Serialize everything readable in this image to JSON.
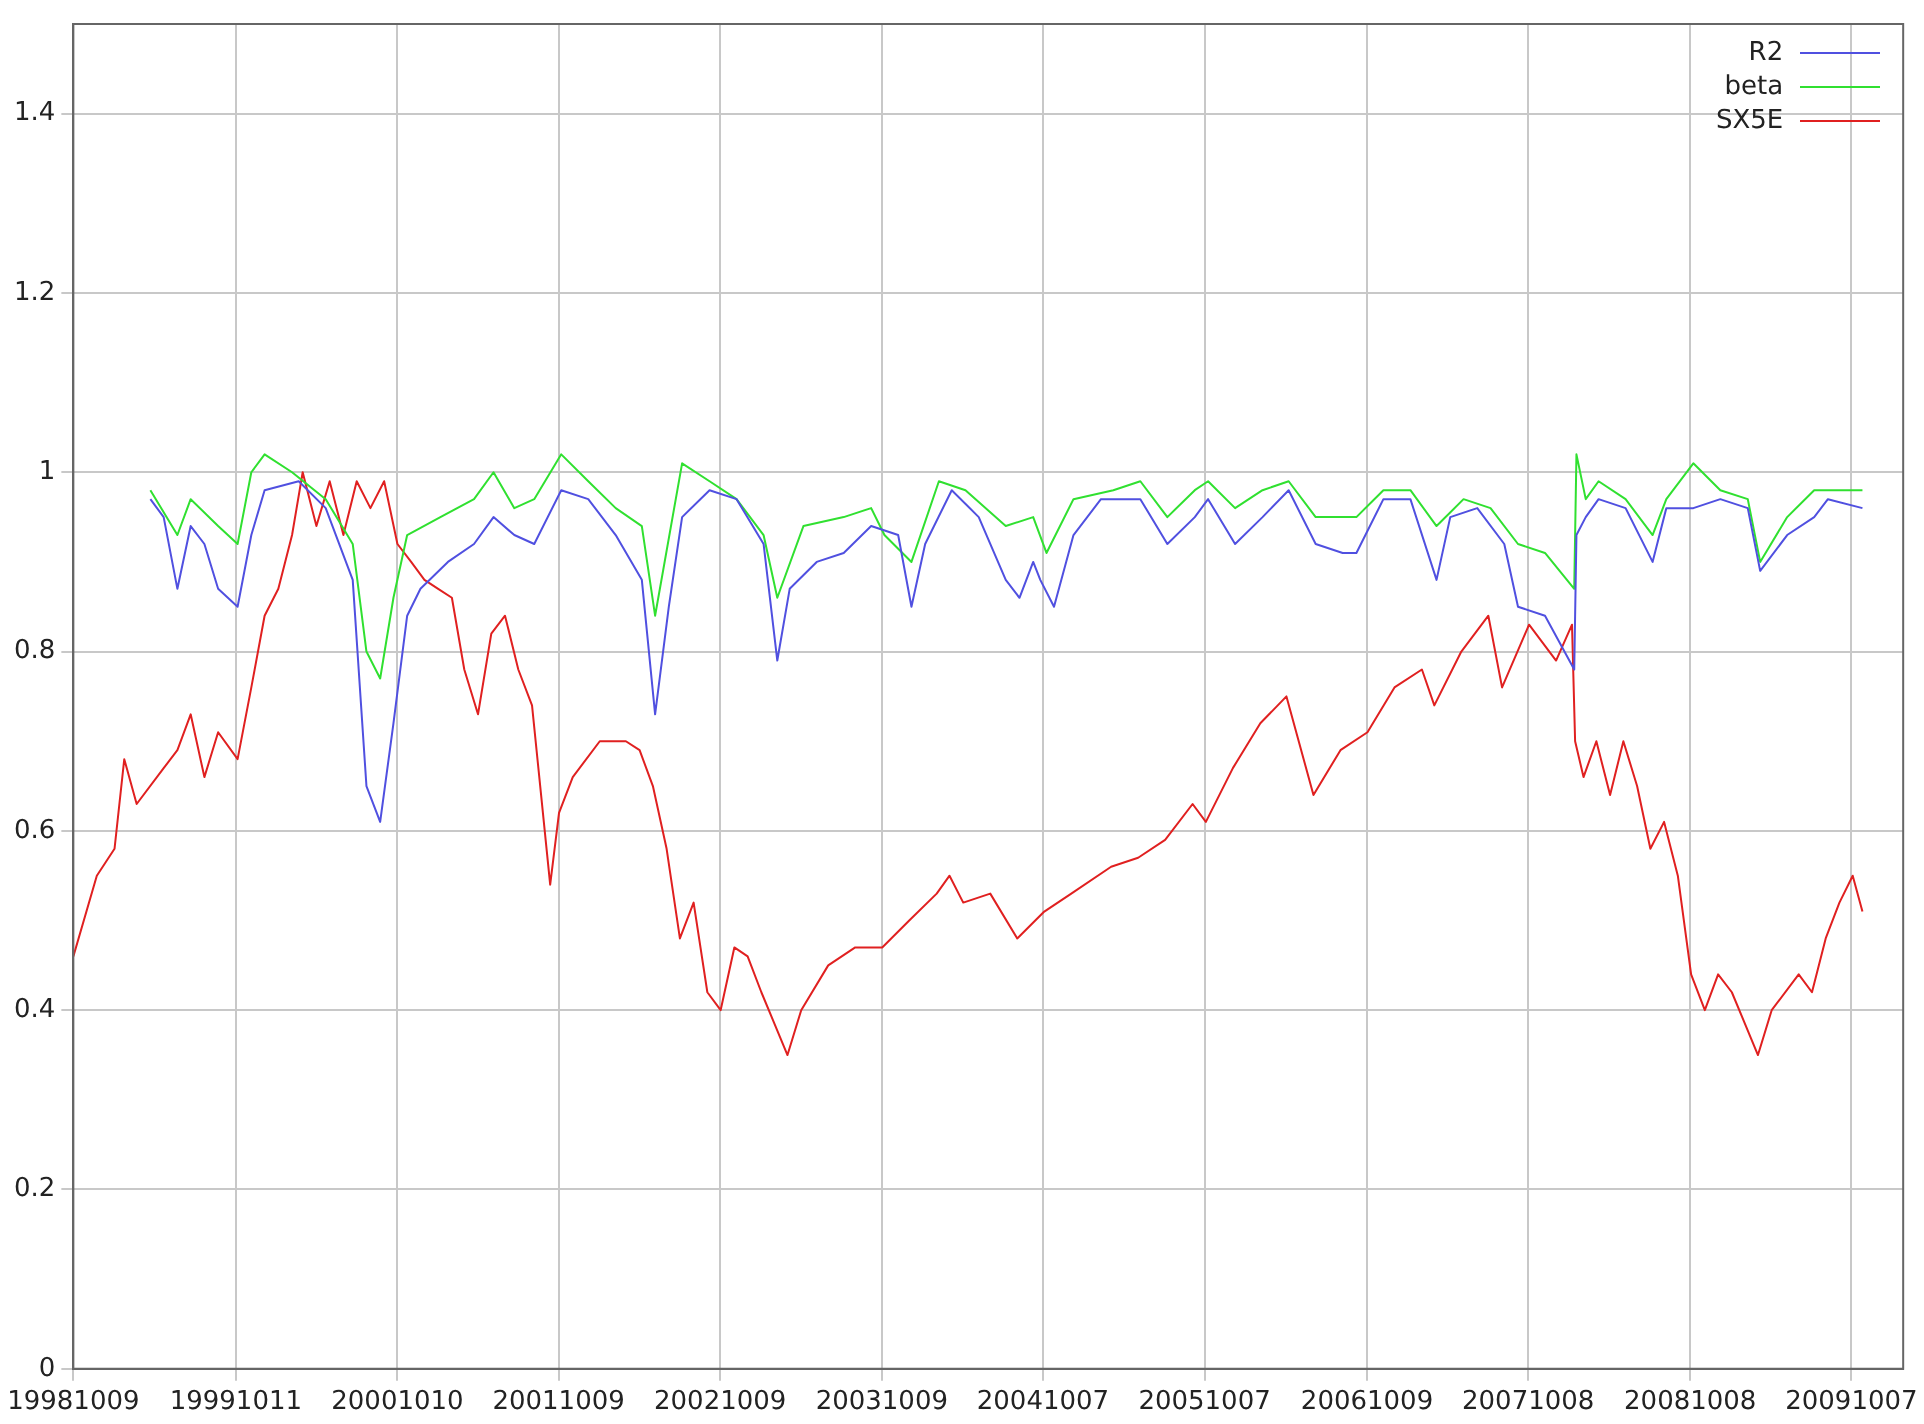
{
  "chart_data": {
    "type": "line",
    "legend": "top right",
    "grid": true,
    "marker": "none",
    "line_style": "solid",
    "xlim": [
      "1998-10-09",
      "2010-02-01"
    ],
    "ylim": [
      0,
      1.5
    ],
    "xticks": [
      {
        "value": "1998-10-09",
        "label": "19981009"
      },
      {
        "value": "1999-10-11",
        "label": "19991011"
      },
      {
        "value": "2000-10-10",
        "label": "20001010"
      },
      {
        "value": "2001-10-09",
        "label": "20011009"
      },
      {
        "value": "2002-10-09",
        "label": "20021009"
      },
      {
        "value": "2003-10-09",
        "label": "20031009"
      },
      {
        "value": "2004-10-07",
        "label": "20041007"
      },
      {
        "value": "2005-10-07",
        "label": "20051007"
      },
      {
        "value": "2006-10-09",
        "label": "20061009"
      },
      {
        "value": "2007-10-08",
        "label": "20071008"
      },
      {
        "value": "2008-10-08",
        "label": "20081008"
      },
      {
        "value": "2009-10-07",
        "label": "20091007"
      }
    ],
    "yticks": [
      0,
      0.2,
      0.4,
      0.6,
      0.8,
      1,
      1.2,
      1.4
    ],
    "series": [
      {
        "name": "R2",
        "color": "#5050e0",
        "x": [
          "1999-04-01",
          "1999-05-01",
          "1999-06-01",
          "1999-07-01",
          "1999-08-01",
          "1999-09-01",
          "1999-10-15",
          "1999-11-15",
          "1999-12-15",
          "2000-03-01",
          "2000-05-01",
          "2000-07-01",
          "2000-08-01",
          "2000-09-01",
          "2000-10-01",
          "2000-11-01",
          "2000-12-01",
          "2001-02-01",
          "2001-04-01",
          "2001-05-15",
          "2001-07-01",
          "2001-08-15",
          "2001-10-15",
          "2001-12-15",
          "2002-02-15",
          "2002-04-15",
          "2002-05-15",
          "2002-06-15",
          "2002-07-15",
          "2002-09-15",
          "2002-11-15",
          "2003-01-15",
          "2003-02-15",
          "2003-03-15",
          "2003-05-15",
          "2003-07-15",
          "2003-09-15",
          "2003-11-15",
          "2003-12-15",
          "2004-01-15",
          "2004-03-15",
          "2004-05-15",
          "2004-07-15",
          "2004-08-15",
          "2004-09-15",
          "2004-10-01",
          "2004-11-01",
          "2004-12-15",
          "2005-02-15",
          "2005-05-15",
          "2005-07-15",
          "2005-09-15",
          "2005-10-15",
          "2005-12-15",
          "2006-02-15",
          "2006-04-15",
          "2006-06-15",
          "2006-08-15",
          "2006-09-15",
          "2006-11-15",
          "2007-01-15",
          "2007-03-15",
          "2007-04-15",
          "2007-06-15",
          "2007-08-15",
          "2007-09-15",
          "2007-11-15",
          "2008-01-20",
          "2008-01-25",
          "2008-02-15",
          "2008-03-15",
          "2008-05-15",
          "2008-07-15",
          "2008-08-15",
          "2008-10-15",
          "2008-12-15",
          "2009-02-15",
          "2009-03-15",
          "2009-05-15",
          "2009-07-15",
          "2009-08-15",
          "2009-11-01"
        ],
        "values": [
          0.97,
          0.95,
          0.87,
          0.94,
          0.92,
          0.87,
          0.85,
          0.93,
          0.98,
          0.99,
          0.96,
          0.88,
          0.65,
          0.61,
          0.72,
          0.84,
          0.87,
          0.9,
          0.92,
          0.95,
          0.93,
          0.92,
          0.98,
          0.97,
          0.93,
          0.88,
          0.73,
          0.85,
          0.95,
          0.98,
          0.97,
          0.92,
          0.79,
          0.87,
          0.9,
          0.91,
          0.94,
          0.93,
          0.85,
          0.92,
          0.98,
          0.95,
          0.88,
          0.86,
          0.9,
          0.88,
          0.85,
          0.93,
          0.97,
          0.97,
          0.92,
          0.95,
          0.97,
          0.92,
          0.95,
          0.98,
          0.92,
          0.91,
          0.91,
          0.97,
          0.97,
          0.88,
          0.95,
          0.96,
          0.92,
          0.85,
          0.84,
          0.78,
          0.93,
          0.95,
          0.97,
          0.96,
          0.9,
          0.96,
          0.96,
          0.97,
          0.96,
          0.89,
          0.93,
          0.95,
          0.97,
          0.96
        ]
      },
      {
        "name": "beta",
        "color": "#30e030",
        "x": [
          "1999-04-01",
          "1999-06-01",
          "1999-07-01",
          "1999-09-01",
          "1999-10-15",
          "1999-11-15",
          "1999-12-15",
          "2000-02-15",
          "2000-05-01",
          "2000-07-01",
          "2000-08-01",
          "2000-09-01",
          "2000-10-01",
          "2000-11-01",
          "2001-01-15",
          "2001-04-01",
          "2001-05-15",
          "2001-07-01",
          "2001-08-15",
          "2001-10-15",
          "2001-12-15",
          "2002-02-15",
          "2002-04-15",
          "2002-05-15",
          "2002-07-15",
          "2002-09-15",
          "2002-11-15",
          "2003-01-15",
          "2003-02-15",
          "2003-04-15",
          "2003-07-15",
          "2003-09-15",
          "2003-10-15",
          "2003-12-15",
          "2004-02-15",
          "2004-04-15",
          "2004-07-15",
          "2004-09-15",
          "2004-10-15",
          "2004-12-15",
          "2005-03-15",
          "2005-05-15",
          "2005-07-15",
          "2005-09-15",
          "2005-10-15",
          "2005-12-15",
          "2006-02-15",
          "2006-04-15",
          "2006-06-15",
          "2006-09-15",
          "2006-11-15",
          "2007-01-15",
          "2007-03-15",
          "2007-05-15",
          "2007-07-15",
          "2007-09-15",
          "2007-11-15",
          "2008-01-20",
          "2008-01-25",
          "2008-02-15",
          "2008-03-15",
          "2008-05-15",
          "2008-07-15",
          "2008-08-15",
          "2008-10-15",
          "2008-12-15",
          "2009-02-15",
          "2009-03-15",
          "2009-05-15",
          "2009-07-15",
          "2009-09-15",
          "2009-11-01"
        ],
        "values": [
          0.98,
          0.93,
          0.97,
          0.94,
          0.92,
          1.0,
          1.02,
          1.0,
          0.97,
          0.92,
          0.8,
          0.77,
          0.86,
          0.93,
          0.95,
          0.97,
          1.0,
          0.96,
          0.97,
          1.02,
          0.99,
          0.96,
          0.94,
          0.84,
          1.01,
          0.99,
          0.97,
          0.93,
          0.86,
          0.94,
          0.95,
          0.96,
          0.93,
          0.9,
          0.99,
          0.98,
          0.94,
          0.95,
          0.91,
          0.97,
          0.98,
          0.99,
          0.95,
          0.98,
          0.99,
          0.96,
          0.98,
          0.99,
          0.95,
          0.95,
          0.98,
          0.98,
          0.94,
          0.97,
          0.96,
          0.92,
          0.91,
          0.87,
          1.02,
          0.97,
          0.99,
          0.97,
          0.93,
          0.97,
          1.01,
          0.98,
          0.97,
          0.9,
          0.95,
          0.98,
          0.98,
          0.98
        ]
      },
      {
        "name": "SX5E",
        "color": "#e02020",
        "x": [
          "1998-10-09",
          "1998-12-01",
          "1999-01-10",
          "1999-02-01",
          "1999-03-01",
          "1999-05-01",
          "1999-06-01",
          "1999-07-01",
          "1999-08-01",
          "1999-09-01",
          "1999-10-15",
          "1999-11-15",
          "1999-12-15",
          "2000-01-15",
          "2000-02-15",
          "2000-03-10",
          "2000-04-10",
          "2000-05-10",
          "2000-06-10",
          "2000-07-10",
          "2000-08-10",
          "2000-09-10",
          "2000-10-10",
          "2000-11-10",
          "2000-12-10",
          "2001-01-10",
          "2001-02-10",
          "2001-03-10",
          "2001-04-10",
          "2001-05-10",
          "2001-06-10",
          "2001-07-10",
          "2001-08-10",
          "2001-09-20",
          "2001-10-10",
          "2001-11-10",
          "2002-01-10",
          "2002-03-10",
          "2002-04-10",
          "2002-05-10",
          "2002-06-10",
          "2002-07-10",
          "2002-08-10",
          "2002-09-10",
          "2002-10-10",
          "2002-11-10",
          "2002-12-10",
          "2003-01-10",
          "2003-03-10",
          "2003-04-10",
          "2003-06-10",
          "2003-08-10",
          "2003-10-10",
          "2003-12-10",
          "2004-02-10",
          "2004-03-10",
          "2004-04-10",
          "2004-06-10",
          "2004-08-10",
          "2004-10-10",
          "2004-12-10",
          "2005-03-10",
          "2005-05-10",
          "2005-07-10",
          "2005-09-10",
          "2005-10-10",
          "2005-12-10",
          "2006-02-10",
          "2006-04-10",
          "2006-06-10",
          "2006-08-10",
          "2006-10-10",
          "2006-12-10",
          "2007-02-10",
          "2007-03-10",
          "2007-05-10",
          "2007-07-10",
          "2007-08-10",
          "2007-10-10",
          "2007-12-10",
          "2008-01-15",
          "2008-01-22",
          "2008-02-10",
          "2008-03-10",
          "2008-04-10",
          "2008-05-10",
          "2008-06-10",
          "2008-07-10",
          "2008-08-10",
          "2008-09-10",
          "2008-10-10",
          "2008-11-10",
          "2008-12-10",
          "2009-01-10",
          "2009-03-10",
          "2009-04-10",
          "2009-06-10",
          "2009-07-10",
          "2009-08-10",
          "2009-09-10",
          "2009-10-10",
          "2009-11-01"
        ],
        "values": [
          0.46,
          0.55,
          0.58,
          0.68,
          0.63,
          0.67,
          0.69,
          0.73,
          0.66,
          0.71,
          0.68,
          0.76,
          0.84,
          0.87,
          0.93,
          1.0,
          0.94,
          0.99,
          0.93,
          0.99,
          0.96,
          0.99,
          0.92,
          0.9,
          0.88,
          0.87,
          0.86,
          0.78,
          0.73,
          0.82,
          0.84,
          0.78,
          0.74,
          0.54,
          0.62,
          0.66,
          0.7,
          0.7,
          0.69,
          0.65,
          0.58,
          0.48,
          0.52,
          0.42,
          0.4,
          0.47,
          0.46,
          0.42,
          0.35,
          0.4,
          0.45,
          0.47,
          0.47,
          0.5,
          0.53,
          0.55,
          0.52,
          0.53,
          0.48,
          0.51,
          0.53,
          0.56,
          0.57,
          0.59,
          0.63,
          0.61,
          0.67,
          0.72,
          0.75,
          0.64,
          0.69,
          0.71,
          0.76,
          0.78,
          0.74,
          0.8,
          0.84,
          0.76,
          0.83,
          0.79,
          0.83,
          0.7,
          0.66,
          0.7,
          0.64,
          0.7,
          0.65,
          0.58,
          0.61,
          0.55,
          0.44,
          0.4,
          0.44,
          0.42,
          0.35,
          0.4,
          0.44,
          0.42,
          0.48,
          0.52,
          0.55,
          0.51
        ]
      }
    ]
  }
}
